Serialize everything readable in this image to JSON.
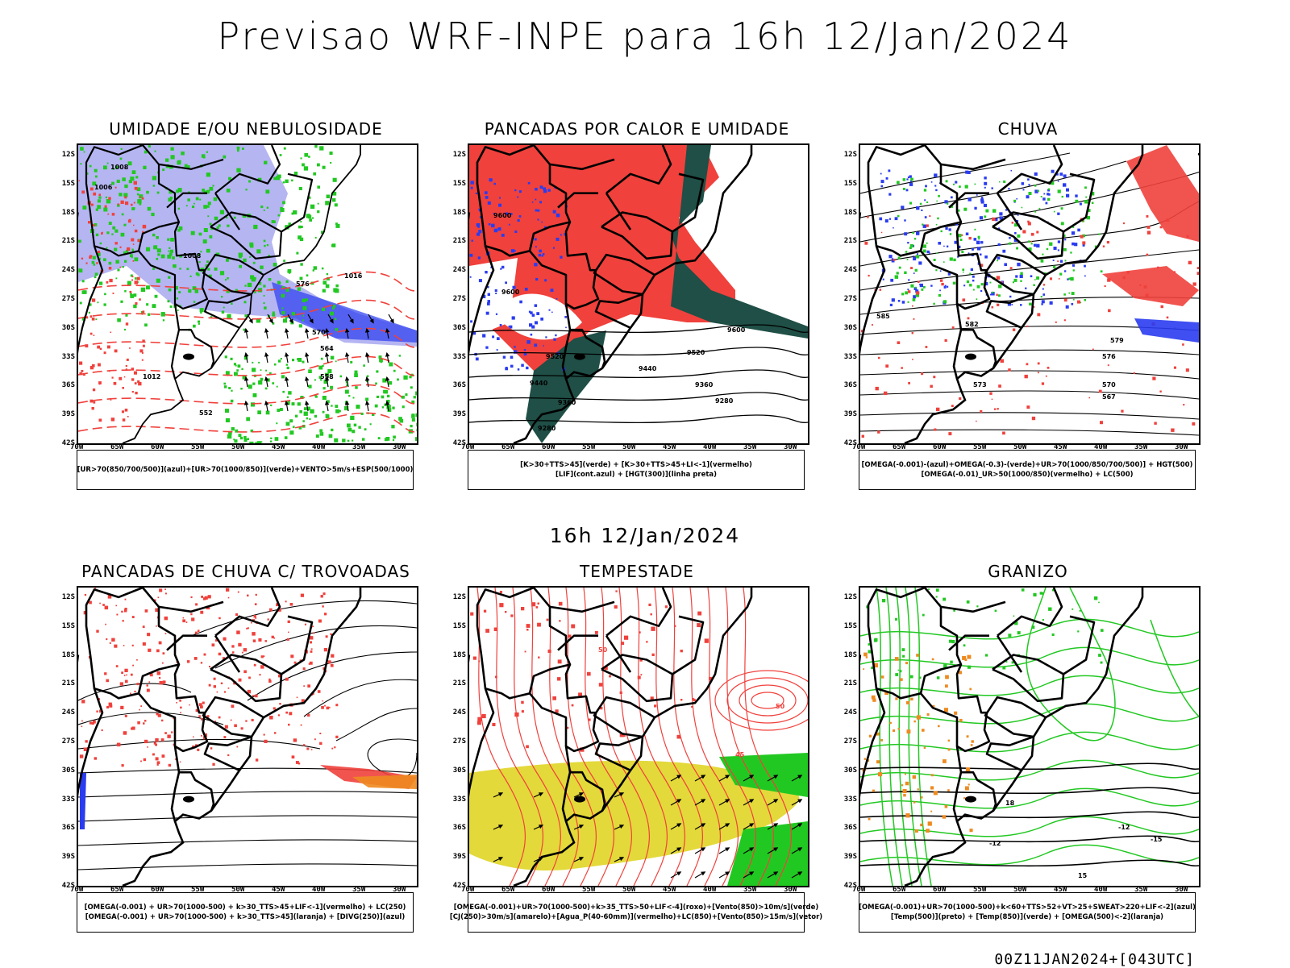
{
  "main_title": "Previsao WRF-INPE  para 16h 12/Jan/2024",
  "mid_title": "16h 12/Jan/2024",
  "footer_stamp": "00Z11JAN2024+[043UTC]",
  "lat_labels": [
    "12S",
    "15S",
    "18S",
    "21S",
    "24S",
    "27S",
    "30S",
    "33S",
    "36S",
    "39S",
    "42S"
  ],
  "lon_labels": [
    "70W",
    "65W",
    "60W",
    "55W",
    "50W",
    "45W",
    "40W",
    "35W",
    "30W"
  ],
  "panels": [
    {
      "title": "UMIDADE E/OU NEBULOSIDADE",
      "legend": [
        "[UR>70(850/700/500)](azul)+[UR>70(1000/850)](verde)+VENTO>5m/s+ESP(500/1000)"
      ],
      "contour_labels": [
        "1008",
        "1006",
        "1012",
        "1016",
        "576",
        "570",
        "564",
        "558",
        "552"
      ]
    },
    {
      "title": "PANCADAS POR CALOR E UMIDADE",
      "legend": [
        "[K>30+TTS>45](verde) + [K>30+TTS>45+LI<-1](vermelho)",
        "[LIF](cont.azul) + [HGT(300)](linha preta)"
      ],
      "contour_labels": [
        "9600",
        "9520",
        "9440",
        "9360",
        "9280"
      ]
    },
    {
      "title": "CHUVA",
      "legend": [
        "[OMEGA(-0.001)-(azul)+OMEGA(-0.3)-(verde)+UR>70(1000/850/700/500)] + HGT(500)",
        "[OMEGA(-0.01)_UR>50(1000/850)(vermelho) + LC(500)"
      ],
      "contour_labels": [
        "585",
        "582",
        "579",
        "576",
        "573",
        "570",
        "567"
      ]
    },
    {
      "title": "PANCADAS DE CHUVA C/ TROVOADAS",
      "legend": [
        "[OMEGA(-0.001) + UR>70(1000-500) + k>30_TTS>45+LIF<-1](vermelho) + LC(250)",
        "[OMEGA(-0.001) + UR>70(1000-500) + k>30_TTS>45](laranja) + [DIVG(250)](azul)"
      ],
      "contour_labels": []
    },
    {
      "title": "TEMPESTADE",
      "legend": [
        "[OMEGA(-0.001)+UR>70(1000-500)+k>35_TTS>50+LIF<-4](roxo)+[Vento(850)>10m/s](verde)",
        "[CJ(250)>30m/s](amarelo)+[Agua_P(40-60mm)](vermelho)+LC(850)+[Vento(850)>15m/s](vetor)"
      ],
      "contour_labels": [
        "50",
        "45"
      ]
    },
    {
      "title": "GRANIZO",
      "legend": [
        "[OMEGA(-0.001)+UR>70(1000-500)+k<60+TTS>52+VT>25+SWEAT>220+LIF<-2](azul)",
        "[Temp(500)](preto) + [Temp(850)](verde) + [OMEGA(500)<-2](laranja)"
      ],
      "contour_labels": [
        "-12",
        "-15",
        "15",
        "18"
      ]
    }
  ],
  "colors": {
    "red": "#f0413c",
    "green": "#22c822",
    "blue": "#2a3cf0",
    "lavender": "#a8a8f0",
    "darkgreen": "#1f4f46",
    "yellow": "#e3d93a",
    "orange": "#ee8a20",
    "black": "#000000"
  }
}
